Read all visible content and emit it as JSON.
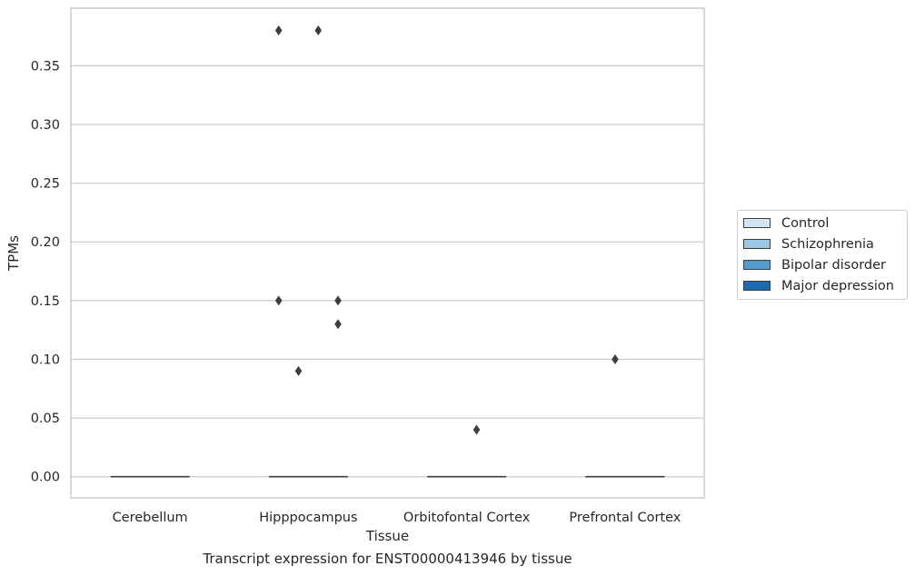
{
  "caption": "Transcript expression for ENST00000413946 by tissue",
  "chart_data": {
    "type": "box",
    "xlabel": "Tissue",
    "ylabel": "TPMs",
    "categories": [
      "Cerebellum",
      "Hipppocampus",
      "Orbitofontal Cortex",
      "Prefrontal Cortex"
    ],
    "ylim": [
      -0.018,
      0.399
    ],
    "yticks": [
      {
        "value": 0.0,
        "label": "0.00"
      },
      {
        "value": 0.05,
        "label": "0.05"
      },
      {
        "value": 0.1,
        "label": "0.10"
      },
      {
        "value": 0.15,
        "label": "0.15"
      },
      {
        "value": 0.2,
        "label": "0.20"
      },
      {
        "value": 0.25,
        "label": "0.25"
      },
      {
        "value": 0.3,
        "label": "0.30"
      },
      {
        "value": 0.35,
        "label": "0.35"
      }
    ],
    "grid": true,
    "legend_position": "right",
    "series": [
      {
        "name": "Control",
        "color": "#d3e4f3",
        "median": [
          0,
          0,
          0,
          0
        ],
        "outliers": [
          [],
          [
            0.38,
            0.15
          ],
          [],
          []
        ]
      },
      {
        "name": "Schizophrenia",
        "color": "#9ac8e0",
        "median": [
          0,
          0,
          0,
          0
        ],
        "outliers": [
          [],
          [
            0.09
          ],
          [],
          [
            0.1
          ]
        ]
      },
      {
        "name": "Bipolar disorder",
        "color": "#529dcc",
        "median": [
          0,
          0,
          0,
          0
        ],
        "outliers": [
          [],
          [
            0.38
          ],
          [
            0.04
          ],
          []
        ]
      },
      {
        "name": "Major depression",
        "color": "#1c6aaf",
        "median": [
          0,
          0,
          0,
          0
        ],
        "outliers": [
          [],
          [
            0.15,
            0.13
          ],
          [],
          []
        ]
      }
    ]
  }
}
